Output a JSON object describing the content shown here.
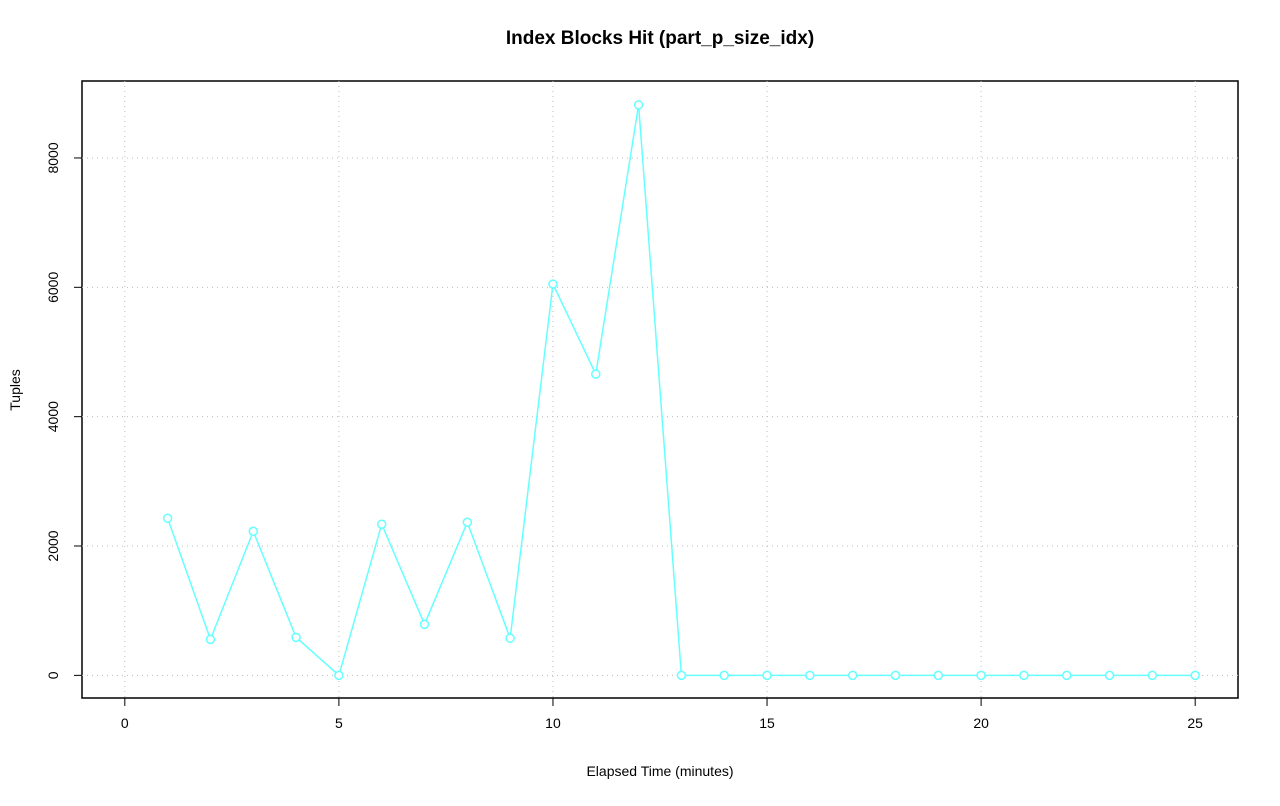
{
  "chart_data": {
    "type": "line",
    "title": "Index Blocks Hit (part_p_size_idx)",
    "x_label": "Elapsed Time (minutes)",
    "y_label": "Tuples",
    "x": [
      1,
      2,
      3,
      4,
      5,
      6,
      7,
      8,
      9,
      10,
      11,
      12,
      13,
      14,
      15,
      16,
      17,
      18,
      19,
      20,
      21,
      22,
      23,
      24,
      25
    ],
    "series": [
      {
        "name": "part_p_size_idx",
        "color": "#66ffff",
        "values": [
          2430,
          557,
          2228,
          588,
          0,
          2337,
          789,
          2368,
          573,
          6050,
          4658,
          8820,
          0,
          0,
          0,
          0,
          0,
          0,
          0,
          0,
          0,
          0,
          0,
          0,
          0
        ]
      }
    ],
    "xlim": [
      -1,
      26
    ],
    "ylim": [
      -350,
      9190
    ],
    "xticks": [
      0,
      5,
      10,
      15,
      20,
      25
    ],
    "yticks": [
      0,
      2000,
      4000,
      6000,
      8000
    ],
    "grid": true
  }
}
